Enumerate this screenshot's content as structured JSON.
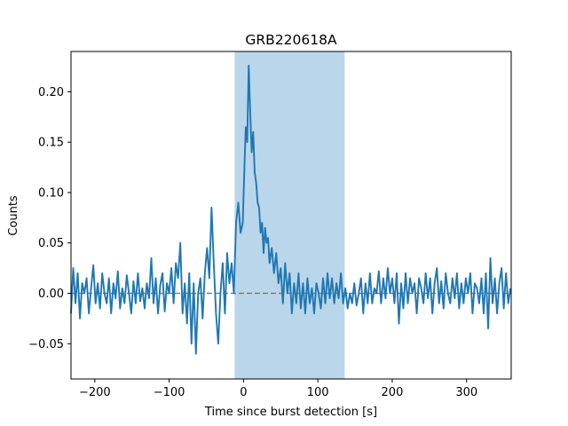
{
  "chart_data": {
    "type": "line",
    "title": "GRB220618A",
    "xlabel": "Time since burst detection [s]",
    "ylabel": "Counts",
    "xlim": [
      -232,
      360
    ],
    "ylim": [
      -0.085,
      0.24
    ],
    "xticks": [
      -200,
      -100,
      0,
      100,
      200,
      300
    ],
    "xtick_labels": [
      "−200",
      "−100",
      "0",
      "100",
      "200",
      "300"
    ],
    "yticks": [
      -0.05,
      0.0,
      0.05,
      0.1,
      0.15,
      0.2
    ],
    "ytick_labels": [
      "−0.05",
      "0.00",
      "0.05",
      "0.10",
      "0.15",
      "0.20"
    ],
    "grid": false,
    "legend": false,
    "highlight_region": {
      "x_start": -12,
      "x_end": 136,
      "color": "#bad6ea"
    },
    "baseline": {
      "y": 0.0,
      "style": "dashed",
      "color": "#808080"
    },
    "series": [
      {
        "color": "#1f77b4",
        "points": [
          [
            -232,
            -0.02
          ],
          [
            -229,
            0.025
          ],
          [
            -226,
            -0.01
          ],
          [
            -223,
            0.02
          ],
          [
            -220,
            -0.025
          ],
          [
            -217,
            0.01
          ],
          [
            -214,
            0.0
          ],
          [
            -211,
            0.015
          ],
          [
            -208,
            -0.02
          ],
          [
            -205,
            0.005
          ],
          [
            -202,
            0.028
          ],
          [
            -199,
            -0.01
          ],
          [
            -196,
            0.01
          ],
          [
            -193,
            -0.015
          ],
          [
            -190,
            0.02
          ],
          [
            -187,
            0.0
          ],
          [
            -184,
            -0.01
          ],
          [
            -181,
            0.015
          ],
          [
            -178,
            -0.02
          ],
          [
            -175,
            0.01
          ],
          [
            -172,
            -0.005
          ],
          [
            -169,
            0.022
          ],
          [
            -166,
            -0.015
          ],
          [
            -163,
            0.005
          ],
          [
            -160,
            -0.01
          ],
          [
            -157,
            0.018
          ],
          [
            -154,
            0.0
          ],
          [
            -151,
            -0.02
          ],
          [
            -148,
            0.012
          ],
          [
            -145,
            -0.01
          ],
          [
            -142,
            0.02
          ],
          [
            -139,
            -0.008
          ],
          [
            -136,
            0.005
          ],
          [
            -133,
            -0.015
          ],
          [
            -130,
            0.01
          ],
          [
            -127,
            -0.005
          ],
          [
            -124,
            0.035
          ],
          [
            -121,
            -0.01
          ],
          [
            -118,
            0.015
          ],
          [
            -115,
            -0.02
          ],
          [
            -112,
            0.008
          ],
          [
            -109,
            0.02
          ],
          [
            -106,
            -0.018
          ],
          [
            -103,
            0.01
          ],
          [
            -100,
            0.0
          ],
          [
            -97,
            0.025
          ],
          [
            -94,
            -0.01
          ],
          [
            -91,
            0.03
          ],
          [
            -88,
            0.015
          ],
          [
            -85,
            0.05
          ],
          [
            -82,
            -0.02
          ],
          [
            -79,
            0.01
          ],
          [
            -76,
            -0.03
          ],
          [
            -73,
            0.02
          ],
          [
            -70,
            -0.05
          ],
          [
            -67,
            0.01
          ],
          [
            -64,
            -0.06
          ],
          [
            -61,
            0.0
          ],
          [
            -58,
            0.015
          ],
          [
            -55,
            -0.025
          ],
          [
            -52,
            0.02
          ],
          [
            -49,
            0.045
          ],
          [
            -46,
            0.015
          ],
          [
            -43,
            0.085
          ],
          [
            -40,
            0.03
          ],
          [
            -37,
            -0.02
          ],
          [
            -34,
            -0.05
          ],
          [
            -31,
            0.0
          ],
          [
            -28,
            0.03
          ],
          [
            -25,
            -0.02
          ],
          [
            -22,
            0.04
          ],
          [
            -19,
            0.01
          ],
          [
            -16,
            0.03
          ],
          [
            -13,
            0.0
          ],
          [
            -10,
            0.07
          ],
          [
            -7,
            0.09
          ],
          [
            -4,
            0.06
          ],
          [
            -1,
            0.07
          ],
          [
            1,
            0.12
          ],
          [
            3,
            0.165
          ],
          [
            5,
            0.15
          ],
          [
            7,
            0.226
          ],
          [
            9,
            0.18
          ],
          [
            11,
            0.14
          ],
          [
            13,
            0.16
          ],
          [
            15,
            0.12
          ],
          [
            17,
            0.11
          ],
          [
            19,
            0.09
          ],
          [
            21,
            0.085
          ],
          [
            23,
            0.06
          ],
          [
            25,
            0.07
          ],
          [
            27,
            0.04
          ],
          [
            29,
            0.065
          ],
          [
            31,
            0.05
          ],
          [
            33,
            0.055
          ],
          [
            35,
            0.03
          ],
          [
            38,
            0.045
          ],
          [
            41,
            0.02
          ],
          [
            44,
            0.04
          ],
          [
            47,
            0.01
          ],
          [
            50,
            0.025
          ],
          [
            53,
            -0.01
          ],
          [
            56,
            0.03
          ],
          [
            59,
            0.0
          ],
          [
            62,
            0.02
          ],
          [
            65,
            -0.02
          ],
          [
            68,
            0.01
          ],
          [
            71,
            -0.01
          ],
          [
            74,
            0.02
          ],
          [
            77,
            -0.015
          ],
          [
            80,
            0.01
          ],
          [
            83,
            -0.02
          ],
          [
            86,
            0.015
          ],
          [
            89,
            -0.01
          ],
          [
            92,
            0.005
          ],
          [
            95,
            -0.02
          ],
          [
            98,
            0.01
          ],
          [
            101,
            0.0
          ],
          [
            104,
            -0.015
          ],
          [
            107,
            0.015
          ],
          [
            110,
            -0.01
          ],
          [
            113,
            0.02
          ],
          [
            116,
            -0.005
          ],
          [
            119,
            0.015
          ],
          [
            122,
            -0.01
          ],
          [
            125,
            0.01
          ],
          [
            128,
            -0.005
          ],
          [
            131,
            0.02
          ],
          [
            134,
            -0.01
          ],
          [
            137,
            0.005
          ],
          [
            140,
            -0.015
          ],
          [
            143,
            0.0
          ],
          [
            146,
            -0.01
          ],
          [
            149,
            0.01
          ],
          [
            152,
            -0.012
          ],
          [
            155,
            0.0
          ],
          [
            158,
            0.015
          ],
          [
            161,
            -0.02
          ],
          [
            164,
            0.01
          ],
          [
            167,
            -0.01
          ],
          [
            170,
            0.02
          ],
          [
            173,
            -0.01
          ],
          [
            176,
            0.005
          ],
          [
            179,
            0.0
          ],
          [
            182,
            0.022
          ],
          [
            185,
            -0.01
          ],
          [
            188,
            0.015
          ],
          [
            191,
            -0.005
          ],
          [
            194,
            0.025
          ],
          [
            197,
            0.0
          ],
          [
            200,
            0.015
          ],
          [
            203,
            -0.01
          ],
          [
            206,
            0.02
          ],
          [
            209,
            -0.03
          ],
          [
            212,
            0.01
          ],
          [
            215,
            -0.015
          ],
          [
            218,
            0.02
          ],
          [
            221,
            -0.01
          ],
          [
            224,
            0.015
          ],
          [
            227,
            0.0
          ],
          [
            230,
            0.01
          ],
          [
            233,
            -0.02
          ],
          [
            236,
            0.015
          ],
          [
            239,
            0.005
          ],
          [
            242,
            -0.01
          ],
          [
            245,
            0.02
          ],
          [
            248,
            -0.005
          ],
          [
            251,
            0.015
          ],
          [
            254,
            -0.02
          ],
          [
            257,
            0.01
          ],
          [
            260,
            0.025
          ],
          [
            263,
            -0.01
          ],
          [
            266,
            0.012
          ],
          [
            269,
            -0.015
          ],
          [
            272,
            0.02
          ],
          [
            275,
            0.0
          ],
          [
            278,
            -0.01
          ],
          [
            281,
            0.015
          ],
          [
            284,
            -0.005
          ],
          [
            287,
            0.02
          ],
          [
            290,
            -0.015
          ],
          [
            293,
            0.01
          ],
          [
            296,
            -0.01
          ],
          [
            299,
            0.015
          ],
          [
            302,
            0.0
          ],
          [
            305,
            0.02
          ],
          [
            308,
            -0.02
          ],
          [
            311,
            0.01
          ],
          [
            314,
            0.005
          ],
          [
            317,
            -0.01
          ],
          [
            320,
            0.015
          ],
          [
            323,
            -0.02
          ],
          [
            326,
            0.02
          ],
          [
            329,
            -0.035
          ],
          [
            332,
            0.035
          ],
          [
            335,
            -0.01
          ],
          [
            338,
            0.015
          ],
          [
            341,
            -0.02
          ],
          [
            344,
            0.01
          ],
          [
            347,
            0.025
          ],
          [
            350,
            -0.015
          ],
          [
            353,
            0.02
          ],
          [
            356,
            -0.01
          ],
          [
            359,
            0.005
          ]
        ]
      }
    ]
  }
}
